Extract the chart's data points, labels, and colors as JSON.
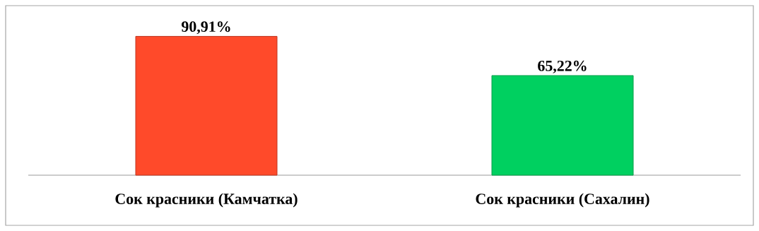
{
  "chart_data": {
    "type": "bar",
    "categories": [
      "Сок красники (Камчатка)",
      "Сок красники (Сахалин)"
    ],
    "values": [
      90.91,
      65.22
    ],
    "colors": [
      "#ff4a2a",
      "#00d060"
    ],
    "value_labels": [
      "90,91%",
      "65,22%"
    ]
  }
}
